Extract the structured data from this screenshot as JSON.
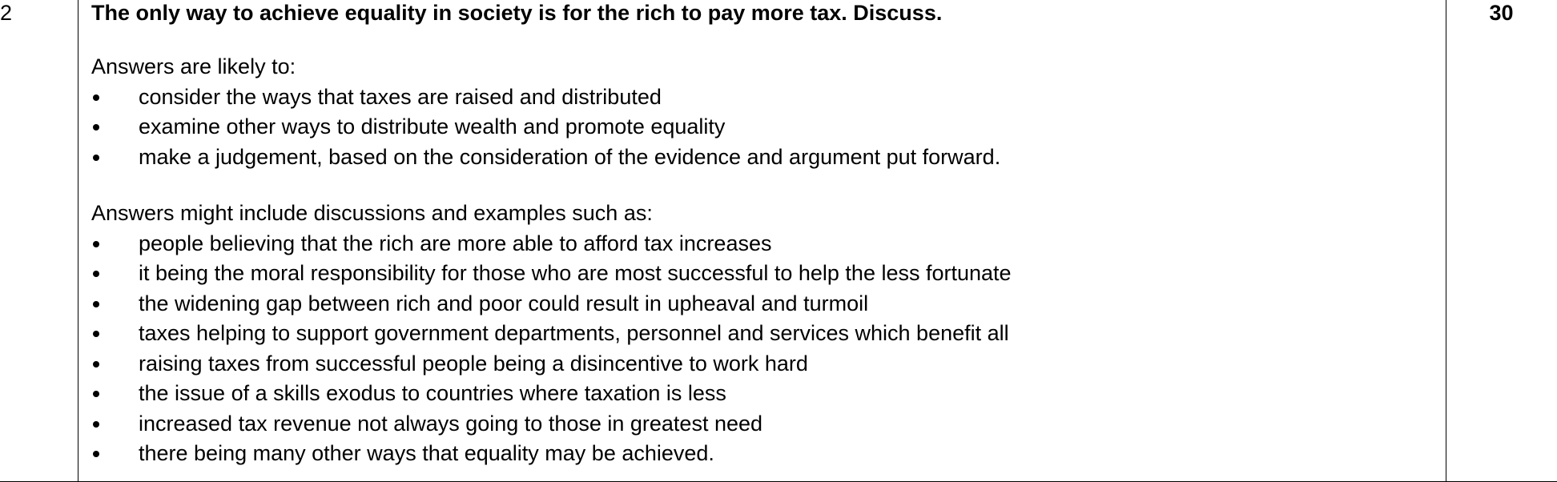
{
  "row": {
    "question_number": "2",
    "question": "The only way to achieve equality in society is for the rich to pay more tax. Discuss.",
    "marks": "30",
    "likely_intro": "Answers are likely to:",
    "likely": [
      "consider the ways that taxes are raised and distributed",
      "examine other ways to distribute wealth and promote equality",
      "make a judgement, based on the consideration of the evidence and argument put forward."
    ],
    "include_intro": "Answers might include discussions and examples such as:",
    "include": [
      "people believing that the rich are more able to afford tax increases",
      "it being the moral responsibility for those who are most successful to help the less fortunate",
      "the widening gap between rich and poor could result in upheaval and turmoil",
      "taxes helping to support government departments, personnel and services which benefit all",
      "raising taxes from successful people being a disincentive to work hard",
      "the issue of a skills exodus to countries where taxation is less",
      "increased tax revenue not always going to those in greatest need",
      "there being many other ways that equality may be achieved."
    ]
  }
}
